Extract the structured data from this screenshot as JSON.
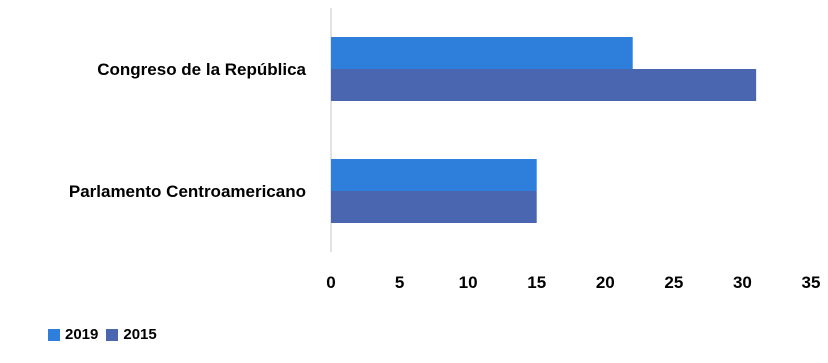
{
  "chart_data": {
    "type": "bar",
    "orientation": "horizontal",
    "categories": [
      "Congreso de la República",
      "Parlamento Centroamericano"
    ],
    "series": [
      {
        "name": "2019",
        "values": [
          22,
          15
        ],
        "color": "#2E7FDB"
      },
      {
        "name": "2015",
        "values": [
          31,
          15
        ],
        "color": "#4A66B0"
      }
    ],
    "xlim": [
      0,
      35
    ],
    "xticks": [
      "0",
      "5",
      "10",
      "15",
      "20",
      "25",
      "30",
      "35"
    ],
    "grid": false,
    "legend_position": "bottom-left",
    "title": "",
    "xlabel": "",
    "ylabel": ""
  }
}
